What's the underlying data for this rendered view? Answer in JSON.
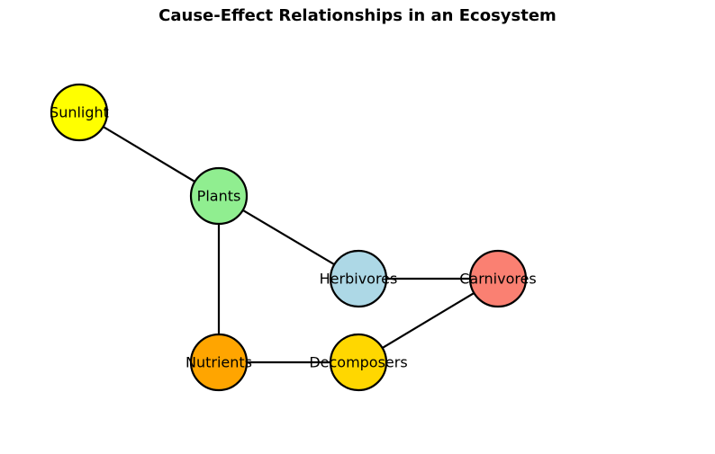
{
  "title": "Cause-Effect Relationships in an Ecosystem",
  "nodes": [
    {
      "id": "sunlight",
      "label": "Sunlight",
      "color": "#ffff00"
    },
    {
      "id": "plants",
      "label": "Plants",
      "color": "#90ee90"
    },
    {
      "id": "herbivores",
      "label": "Herbivores",
      "color": "#add8e6"
    },
    {
      "id": "carnivores",
      "label": "Carnivores",
      "color": "#fa8072"
    },
    {
      "id": "nutrients",
      "label": "Nutrients",
      "color": "#ffa500"
    },
    {
      "id": "decomposers",
      "label": "Decomposers",
      "color": "#ffd700"
    }
  ],
  "edges": [
    {
      "from": "sunlight",
      "to": "plants"
    },
    {
      "from": "plants",
      "to": "herbivores"
    },
    {
      "from": "plants",
      "to": "nutrients"
    },
    {
      "from": "herbivores",
      "to": "carnivores"
    },
    {
      "from": "nutrients",
      "to": "decomposers"
    },
    {
      "from": "carnivores",
      "to": "decomposers"
    }
  ]
}
